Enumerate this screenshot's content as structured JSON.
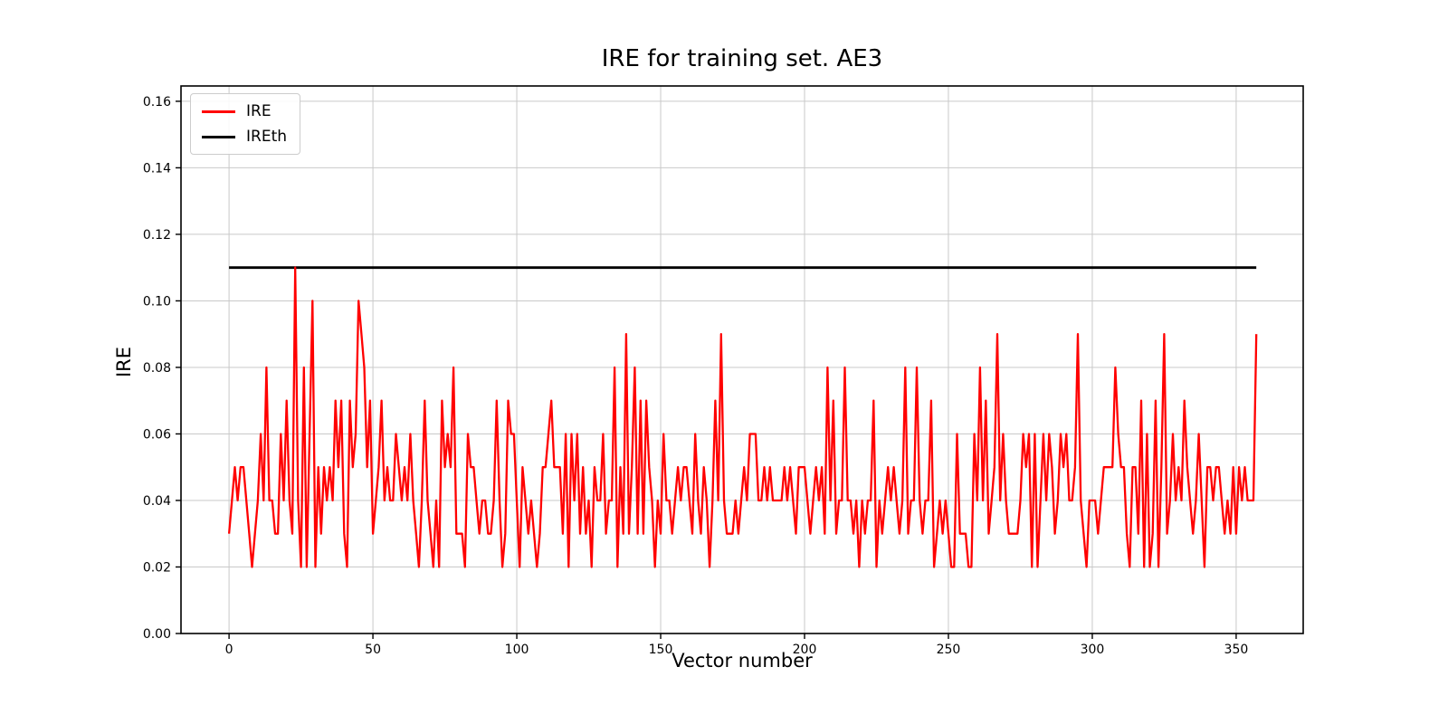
{
  "figure": {
    "background": "#ffffff"
  },
  "chart_data": {
    "type": "line",
    "title": "IRE for training set. AE3",
    "xlabel": "Vector number",
    "ylabel": "IRE",
    "x_ticks": [
      0,
      50,
      100,
      150,
      200,
      250,
      300,
      350
    ],
    "x_tick_labels": [
      "0",
      "50",
      "100",
      "150",
      "200",
      "250",
      "300",
      "350"
    ],
    "y_ticks": [
      0.0,
      0.02,
      0.04,
      0.06,
      0.08,
      0.1,
      0.12,
      0.14,
      0.16
    ],
    "y_tick_labels": [
      "0.00",
      "0.02",
      "0.04",
      "0.06",
      "0.08",
      "0.10",
      "0.12",
      "0.14",
      "0.16"
    ],
    "xlim": [
      -16.7,
      373.3
    ],
    "ylim": [
      0,
      0.1646
    ],
    "grid": true,
    "grid_color": "#c9c9c9",
    "legend_position": "upper left",
    "series": [
      {
        "name": "IRE",
        "color": "#ff0000",
        "x_start": 0,
        "values": [
          0.03,
          0.04,
          0.05,
          0.04,
          0.05,
          0.05,
          0.04,
          0.03,
          0.02,
          0.03,
          0.04,
          0.06,
          0.04,
          0.08,
          0.04,
          0.04,
          0.03,
          0.03,
          0.06,
          0.04,
          0.07,
          0.04,
          0.03,
          0.11,
          0.04,
          0.02,
          0.08,
          0.02,
          0.06,
          0.1,
          0.02,
          0.05,
          0.03,
          0.05,
          0.04,
          0.05,
          0.04,
          0.07,
          0.05,
          0.07,
          0.03,
          0.02,
          0.07,
          0.05,
          0.06,
          0.1,
          0.09,
          0.08,
          0.05,
          0.07,
          0.03,
          0.04,
          0.05,
          0.07,
          0.04,
          0.05,
          0.04,
          0.04,
          0.06,
          0.05,
          0.04,
          0.05,
          0.04,
          0.06,
          0.04,
          0.03,
          0.02,
          0.04,
          0.07,
          0.04,
          0.03,
          0.02,
          0.04,
          0.02,
          0.07,
          0.05,
          0.06,
          0.05,
          0.08,
          0.03,
          0.03,
          0.03,
          0.02,
          0.06,
          0.05,
          0.05,
          0.04,
          0.03,
          0.04,
          0.04,
          0.03,
          0.03,
          0.04,
          0.07,
          0.04,
          0.02,
          0.03,
          0.07,
          0.06,
          0.06,
          0.04,
          0.02,
          0.05,
          0.04,
          0.03,
          0.04,
          0.03,
          0.02,
          0.03,
          0.05,
          0.05,
          0.06,
          0.07,
          0.05,
          0.05,
          0.05,
          0.03,
          0.06,
          0.02,
          0.06,
          0.04,
          0.06,
          0.03,
          0.05,
          0.03,
          0.04,
          0.02,
          0.05,
          0.04,
          0.04,
          0.06,
          0.03,
          0.04,
          0.04,
          0.08,
          0.02,
          0.05,
          0.03,
          0.09,
          0.03,
          0.05,
          0.08,
          0.03,
          0.07,
          0.03,
          0.07,
          0.05,
          0.04,
          0.02,
          0.04,
          0.03,
          0.06,
          0.04,
          0.04,
          0.03,
          0.04,
          0.05,
          0.04,
          0.05,
          0.05,
          0.04,
          0.03,
          0.06,
          0.04,
          0.03,
          0.05,
          0.04,
          0.02,
          0.04,
          0.07,
          0.04,
          0.09,
          0.04,
          0.03,
          0.03,
          0.03,
          0.04,
          0.03,
          0.04,
          0.05,
          0.04,
          0.06,
          0.06,
          0.06,
          0.04,
          0.04,
          0.05,
          0.04,
          0.05,
          0.04,
          0.04,
          0.04,
          0.04,
          0.05,
          0.04,
          0.05,
          0.04,
          0.03,
          0.05,
          0.05,
          0.05,
          0.04,
          0.03,
          0.04,
          0.05,
          0.04,
          0.05,
          0.03,
          0.08,
          0.04,
          0.07,
          0.03,
          0.04,
          0.04,
          0.08,
          0.04,
          0.04,
          0.03,
          0.04,
          0.02,
          0.04,
          0.03,
          0.04,
          0.04,
          0.07,
          0.02,
          0.04,
          0.03,
          0.04,
          0.05,
          0.04,
          0.05,
          0.04,
          0.03,
          0.04,
          0.08,
          0.03,
          0.04,
          0.04,
          0.08,
          0.04,
          0.03,
          0.04,
          0.04,
          0.07,
          0.02,
          0.03,
          0.04,
          0.03,
          0.04,
          0.03,
          0.02,
          0.02,
          0.06,
          0.03,
          0.03,
          0.03,
          0.02,
          0.02,
          0.06,
          0.04,
          0.08,
          0.04,
          0.07,
          0.03,
          0.04,
          0.05,
          0.09,
          0.04,
          0.06,
          0.04,
          0.03,
          0.03,
          0.03,
          0.03,
          0.04,
          0.06,
          0.05,
          0.06,
          0.02,
          0.06,
          0.02,
          0.04,
          0.06,
          0.04,
          0.06,
          0.05,
          0.03,
          0.04,
          0.06,
          0.05,
          0.06,
          0.04,
          0.04,
          0.05,
          0.09,
          0.04,
          0.03,
          0.02,
          0.04,
          0.04,
          0.04,
          0.03,
          0.04,
          0.05,
          0.05,
          0.05,
          0.05,
          0.08,
          0.06,
          0.05,
          0.05,
          0.03,
          0.02,
          0.05,
          0.05,
          0.03,
          0.07,
          0.02,
          0.06,
          0.02,
          0.03,
          0.07,
          0.02,
          0.05,
          0.09,
          0.03,
          0.04,
          0.06,
          0.04,
          0.05,
          0.04,
          0.07,
          0.05,
          0.04,
          0.03,
          0.04,
          0.06,
          0.04,
          0.02,
          0.05,
          0.05,
          0.04,
          0.05,
          0.05,
          0.04,
          0.03,
          0.04,
          0.03,
          0.05,
          0.03,
          0.05,
          0.04,
          0.05,
          0.04,
          0.04,
          0.04,
          0.09
        ]
      },
      {
        "name": "IREth",
        "color": "#000000",
        "constant": 0.11,
        "x_range": [
          0,
          357
        ]
      }
    ]
  }
}
